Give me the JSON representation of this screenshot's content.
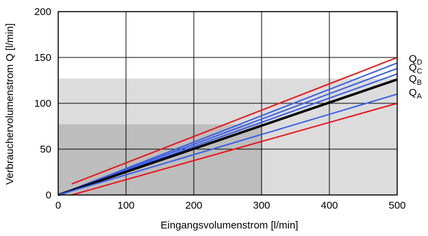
{
  "chart_data": {
    "type": "line",
    "xlabel": "Eingangsvolumenstrom [l/min]",
    "ylabel": "Verbrauchervolumenstrom Q [l/min]",
    "xlim": [
      0,
      500
    ],
    "ylim": [
      0,
      200
    ],
    "x_ticks": [
      "0",
      "100",
      "200",
      "300",
      "400",
      "500"
    ],
    "y_ticks": [
      "0",
      "50",
      "100",
      "150",
      "200"
    ],
    "grid": true,
    "regions": [
      {
        "shade": "light",
        "color": "#dcdcdc",
        "x": [
          0,
          500
        ],
        "y": [
          0,
          127
        ]
      },
      {
        "shade": "dark",
        "color": "#bdbdbd",
        "x": [
          0,
          300
        ],
        "y": [
          0,
          77
        ]
      }
    ],
    "series": [
      {
        "name": "Q",
        "sub": "D",
        "color": "#e8151b",
        "width": 2,
        "x": [
          20,
          500
        ],
        "y": [
          12,
          150
        ]
      },
      {
        "name": "",
        "sub": "",
        "color": "#e8151b",
        "width": 2,
        "x": [
          20,
          500
        ],
        "y": [
          0,
          100
        ]
      },
      {
        "name": "",
        "sub": "",
        "color": "#3a5fe6",
        "width": 2,
        "x": [
          0,
          500
        ],
        "y": [
          0,
          144
        ]
      },
      {
        "name": "Q",
        "sub": "C",
        "color": "#3a5fe6",
        "width": 2,
        "x": [
          0,
          500
        ],
        "y": [
          0,
          138
        ]
      },
      {
        "name": "",
        "sub": "",
        "color": "#3a5fe6",
        "width": 2,
        "x": [
          0,
          500
        ],
        "y": [
          0,
          132
        ]
      },
      {
        "name": "Q",
        "sub": "B",
        "color": "#000000",
        "width": 3.5,
        "x": [
          0,
          500
        ],
        "y": [
          0,
          126
        ]
      },
      {
        "name": "Q",
        "sub": "A",
        "color": "#3a5fe6",
        "width": 2,
        "x": [
          0,
          500
        ],
        "y": [
          0,
          110
        ]
      }
    ],
    "label_y": {
      "Q_D": 149,
      "Q_C": 139,
      "Q_B": 127,
      "Q_A": 112
    }
  }
}
